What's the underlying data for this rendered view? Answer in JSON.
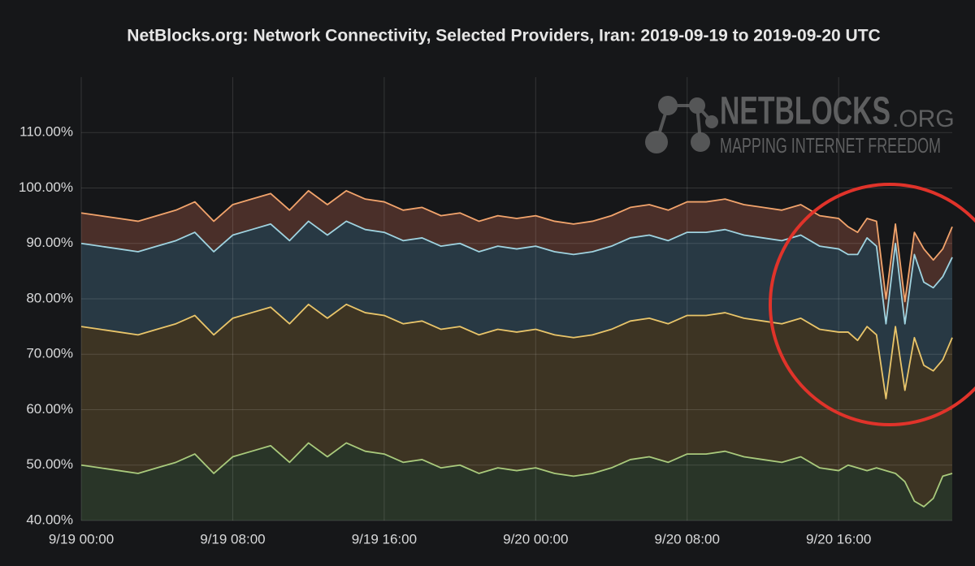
{
  "chart_data": {
    "type": "line",
    "title": "NetBlocks.org: Network Connectivity, Selected Providers, Iran: 2019-09-19 to 2019-09-20 UTC",
    "watermark": {
      "brand": "NETBLOCKS",
      "suffix": ".ORG",
      "tagline": "MAPPING INTERNET FREEDOM"
    },
    "x": [
      0,
      1,
      2,
      3,
      4,
      5,
      6,
      7,
      8,
      9,
      10,
      11,
      12,
      13,
      14,
      15,
      16,
      17,
      18,
      19,
      20,
      21,
      22,
      23,
      24,
      25,
      26,
      27,
      28,
      29,
      30,
      31,
      32,
      33,
      34,
      35,
      36,
      37,
      38,
      39,
      40,
      40.5,
      41,
      41.5,
      42,
      42.5,
      43,
      43.5,
      44,
      44.5,
      45,
      45.5,
      46
    ],
    "xlim": [
      0,
      46
    ],
    "xticks": [
      {
        "value": 0,
        "label": "9/19 00:00"
      },
      {
        "value": 8,
        "label": "9/19 08:00"
      },
      {
        "value": 16,
        "label": "9/19 16:00"
      },
      {
        "value": 24,
        "label": "9/20 00:00"
      },
      {
        "value": 32,
        "label": "9/20 08:00"
      },
      {
        "value": 40,
        "label": "9/20 16:00"
      }
    ],
    "ylim": [
      40,
      120
    ],
    "yticks": [
      {
        "value": 40,
        "label": "40.00%"
      },
      {
        "value": 50,
        "label": "50.00%"
      },
      {
        "value": 60,
        "label": "60.00%"
      },
      {
        "value": 70,
        "label": "70.00%"
      },
      {
        "value": 80,
        "label": "80.00%"
      },
      {
        "value": 90,
        "label": "90.00%"
      },
      {
        "value": 100,
        "label": "100.00%"
      },
      {
        "value": 110,
        "label": "110.00%"
      }
    ],
    "grid": true,
    "series": [
      {
        "color": "#f2a46c",
        "fill": "#4a2f29",
        "values": [
          95.5,
          95,
          94.5,
          94,
          95,
          96,
          97.5,
          94,
          97,
          98,
          99,
          96,
          99.5,
          97,
          99.5,
          98,
          97.5,
          96,
          96.5,
          95,
          95.5,
          94,
          95,
          94.5,
          95,
          94,
          93.5,
          94,
          95,
          96.5,
          97,
          96,
          97.5,
          97.5,
          98,
          97,
          96.5,
          96,
          97,
          95,
          94.5,
          93,
          92,
          94.5,
          94,
          80,
          93.5,
          79.5,
          92,
          89,
          87,
          89,
          93
        ]
      },
      {
        "color": "#9fd3e0",
        "fill": "#283944",
        "values": [
          90,
          89.5,
          89,
          88.5,
          89.5,
          90.5,
          92,
          88.5,
          91.5,
          92.5,
          93.5,
          90.5,
          94,
          91.5,
          94,
          92.5,
          92,
          90.5,
          91,
          89.5,
          90,
          88.5,
          89.5,
          89,
          89.5,
          88.5,
          88,
          88.5,
          89.5,
          91,
          91.5,
          90.5,
          92,
          92,
          92.5,
          91.5,
          91,
          90.5,
          91.5,
          89.5,
          89,
          88,
          88,
          91,
          89.5,
          75.5,
          90,
          75.5,
          88,
          83,
          82,
          84,
          87.5
        ]
      },
      {
        "color": "#e9c56a",
        "fill": "#3d3423",
        "values": [
          75,
          74.5,
          74,
          73.5,
          74.5,
          75.5,
          77,
          73.5,
          76.5,
          77.5,
          78.5,
          75.5,
          79,
          76.5,
          79,
          77.5,
          77,
          75.5,
          76,
          74.5,
          75,
          73.5,
          74.5,
          74,
          74.5,
          73.5,
          73,
          73.5,
          74.5,
          76,
          76.5,
          75.5,
          77,
          77,
          77.5,
          76.5,
          76,
          75.5,
          76.5,
          74.5,
          74,
          74,
          72.5,
          75,
          73.5,
          62,
          75,
          63.5,
          73,
          68,
          67,
          69,
          73
        ]
      },
      {
        "color": "#a9ca7c",
        "fill": "#293528",
        "values": [
          50,
          49.5,
          49,
          48.5,
          49.5,
          50.5,
          52,
          48.5,
          51.5,
          52.5,
          53.5,
          50.5,
          54,
          51.5,
          54,
          52.5,
          52,
          50.5,
          51,
          49.5,
          50,
          48.5,
          49.5,
          49,
          49.5,
          48.5,
          48,
          48.5,
          49.5,
          51,
          51.5,
          50.5,
          52,
          52,
          52.5,
          51.5,
          51,
          50.5,
          51.5,
          49.5,
          49,
          50,
          49.5,
          49,
          49.5,
          49,
          48.5,
          47,
          43.5,
          42.5,
          44,
          48,
          48.5
        ]
      }
    ]
  }
}
